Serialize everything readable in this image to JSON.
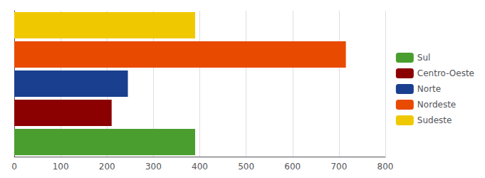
{
  "chart_data": {
    "type": "bar",
    "orientation": "horizontal",
    "categories": [
      "Sul",
      "Centro-Oeste",
      "Norte",
      "Nordeste",
      "Sudeste"
    ],
    "values": [
      390,
      210,
      245,
      715,
      390
    ],
    "colors": [
      "#4a9e2f",
      "#8b0000",
      "#1a3f8f",
      "#e84a00",
      "#f0c800"
    ],
    "xlim": [
      0,
      800
    ],
    "xticks": [
      0,
      100,
      200,
      300,
      400,
      500,
      600,
      700,
      800
    ],
    "grid": true,
    "legend": "right",
    "tick_labels": "x"
  }
}
